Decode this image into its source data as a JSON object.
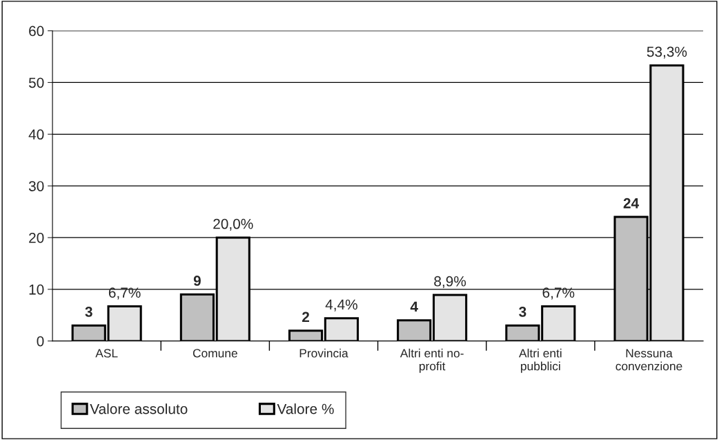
{
  "chart_data": {
    "type": "bar",
    "categories": [
      "ASL",
      "Comune",
      "Provincia",
      "Altri enti no-\nprofit",
      "Altri enti\npubblici",
      "Nessuna\nconvenzione"
    ],
    "series": [
      {
        "name": "Valore assoluto",
        "color": "#c0c0c0",
        "values": [
          3,
          9,
          2,
          4,
          3,
          24
        ],
        "value_labels": [
          "3",
          "9",
          "2",
          "4",
          "3",
          "24"
        ]
      },
      {
        "name": "Valore %",
        "color": "#e4e4e4",
        "values": [
          6.7,
          20.0,
          4.4,
          8.9,
          6.7,
          53.3
        ],
        "value_labels": [
          "6,7%",
          "20,0%",
          "4,4%",
          "8,9%",
          "6,7%",
          "53,3%"
        ]
      }
    ],
    "ylim": [
      0,
      60
    ],
    "yticks": [
      0,
      10,
      20,
      30,
      40,
      50,
      60
    ],
    "grid": "y",
    "legend": "bottom left"
  }
}
